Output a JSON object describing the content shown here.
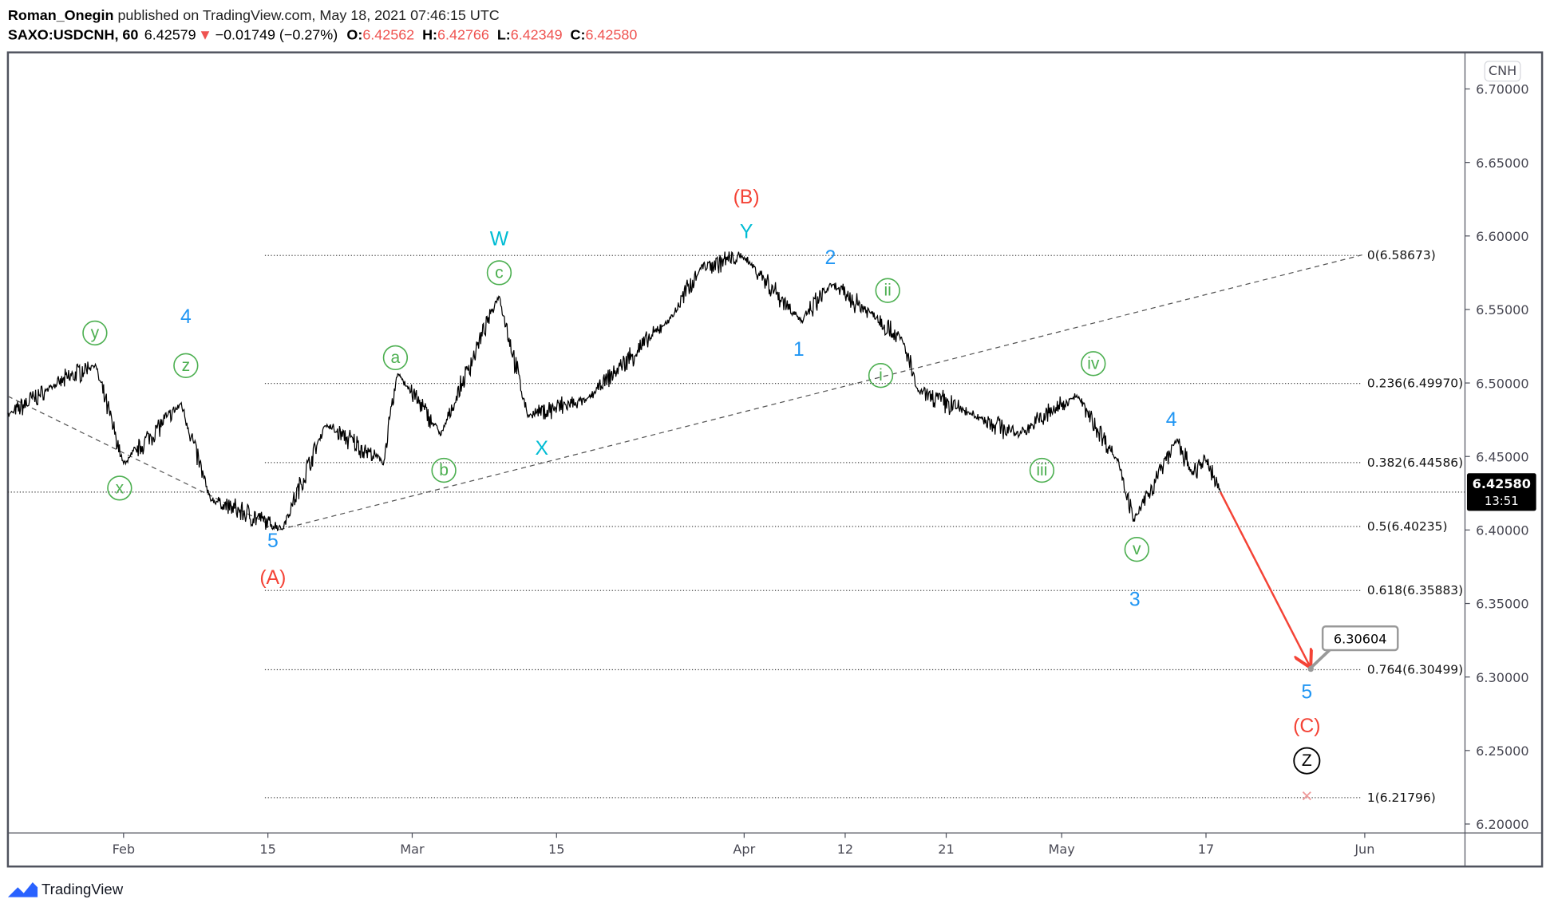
{
  "header": {
    "author": "Roman_Onegin",
    "published": " published on TradingView.com, May 18, 2021 07:46:15 UTC",
    "symbol": "SAXO:USDCNH, 60",
    "last": "6.42579",
    "change": "−0.01749 (−0.27%)",
    "o_label": "O:",
    "o": "6.42562",
    "h_label": "H:",
    "h": "6.42766",
    "l_label": "L:",
    "l": "6.42349",
    "c_label": "C:",
    "c": "6.42580",
    "direction_icon": "triangle-down-icon"
  },
  "colors": {
    "down": "#ef5350",
    "wave_blue": "#2196f3",
    "wave_cyan": "#00bcd4",
    "wave_green": "#4caf50",
    "wave_red": "#f44336",
    "price": "#000000"
  },
  "currency_badge": "CNH",
  "last_price_label": {
    "price": "6.42580",
    "countdown": "13:51"
  },
  "target_label": "6.30604",
  "footer": {
    "brand": "TradingView",
    "logo_icon": "tradingview-logo-icon"
  },
  "chart_data": {
    "type": "line",
    "title": "",
    "xlabel": "",
    "ylabel": "",
    "ylim": [
      6.19,
      6.72
    ],
    "y_ticks": [
      "6.70000",
      "6.65000",
      "6.60000",
      "6.55000",
      "6.50000",
      "6.45000",
      "6.40000",
      "6.35000",
      "6.30000",
      "6.25000",
      "6.20000"
    ],
    "y_tick_values": [
      6.7,
      6.65,
      6.6,
      6.55,
      6.5,
      6.45,
      6.4,
      6.35,
      6.3,
      6.25,
      6.2
    ],
    "x_ticks": [
      {
        "label": "Feb",
        "date": "2021-02-01"
      },
      {
        "label": "15",
        "date": "2021-02-15"
      },
      {
        "label": "Mar",
        "date": "2021-03-01"
      },
      {
        "label": "15",
        "date": "2021-03-15"
      },
      {
        "label": "Apr",
        "date": "2021-04-01"
      },
      {
        "label": "12",
        "date": "2021-04-12"
      },
      {
        "label": "21",
        "date": "2021-04-21"
      },
      {
        "label": "May",
        "date": "2021-05-03"
      },
      {
        "label": "17",
        "date": "2021-05-17"
      },
      {
        "label": "Jun",
        "date": "2021-06-01"
      }
    ],
    "series": [
      {
        "points": [
          [
            "2021-01-20",
            6.478
          ],
          [
            "2021-01-25",
            6.497
          ],
          [
            "2021-01-28",
            6.513
          ],
          [
            "2021-02-01",
            6.445
          ],
          [
            "2021-02-05",
            6.486
          ],
          [
            "2021-02-09",
            6.421
          ],
          [
            "2021-02-16",
            6.401
          ],
          [
            "2021-02-19",
            6.472
          ],
          [
            "2021-02-25",
            6.446
          ],
          [
            "2021-02-26",
            6.507
          ],
          [
            "2021-03-03",
            6.465
          ],
          [
            "2021-03-09",
            6.56
          ],
          [
            "2021-03-11",
            6.478
          ],
          [
            "2021-03-17",
            6.488
          ],
          [
            "2021-03-25",
            6.545
          ],
          [
            "2021-03-29",
            6.579
          ],
          [
            "2021-04-01",
            6.586
          ],
          [
            "2021-04-07",
            6.542
          ],
          [
            "2021-04-09",
            6.567
          ],
          [
            "2021-04-14",
            6.546
          ],
          [
            "2021-04-16",
            6.529
          ],
          [
            "2021-04-19",
            6.495
          ],
          [
            "2021-04-23",
            6.478
          ],
          [
            "2021-04-28",
            6.465
          ],
          [
            "2021-05-04",
            6.492
          ],
          [
            "2021-05-07",
            6.445
          ],
          [
            "2021-05-10",
            6.406
          ],
          [
            "2021-05-13",
            6.462
          ],
          [
            "2021-05-14",
            6.438
          ],
          [
            "2021-05-17",
            6.448
          ],
          [
            "2021-05-18",
            6.4258
          ]
        ]
      }
    ],
    "fib_levels": [
      {
        "label": "0(6.58673)",
        "value": 6.58673
      },
      {
        "label": "0.236(6.49970)",
        "value": 6.4997
      },
      {
        "label": "0.382(6.44586)",
        "value": 6.44586
      },
      {
        "label": "0.5(6.40235)",
        "value": 6.40235
      },
      {
        "label": "0.618(6.35883)",
        "value": 6.35883
      },
      {
        "label": "0.764(6.30499)",
        "value": 6.30499
      },
      {
        "label": "1(6.21796)",
        "value": 6.21796
      }
    ],
    "current_price": 6.4258,
    "projection": {
      "from": [
        "2021-05-18",
        6.4258
      ],
      "to": [
        "2021-05-24",
        6.30604
      ]
    },
    "wave_labels": {
      "B": "(B)",
      "Y": "Y",
      "W": "W",
      "c": "c",
      "two": "2",
      "ii": "ii",
      "y": "y",
      "four_a": "4",
      "z": "z",
      "a": "a",
      "one": "1",
      "i": "i",
      "iv": "iv",
      "x": "x",
      "b": "b",
      "X": "X",
      "iii": "iii",
      "four_b": "4",
      "five_a": "5",
      "A": "(A)",
      "v": "v",
      "three": "3",
      "five_b": "5",
      "C": "(C)",
      "Z": "Z",
      "cross": "×"
    }
  }
}
